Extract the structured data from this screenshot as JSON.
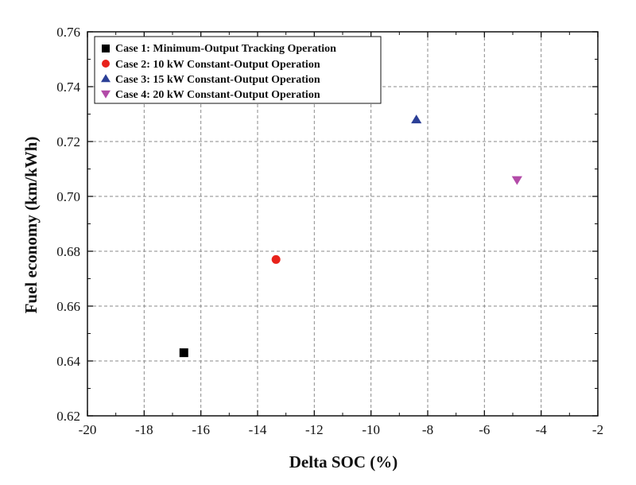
{
  "chart_data": {
    "type": "scatter",
    "title": "",
    "xlabel": "Delta SOC (%)",
    "ylabel": "Fuel economy (km/kWh)",
    "xlim": [
      -20,
      -2
    ],
    "ylim": [
      0.62,
      0.76
    ],
    "xticks": [
      -20,
      -18,
      -16,
      -14,
      -12,
      -10,
      -8,
      -6,
      -4,
      -2
    ],
    "yticks": [
      0.62,
      0.64,
      0.66,
      0.68,
      0.7,
      0.72,
      0.74,
      0.76
    ],
    "xtick_labels": [
      "-20",
      "-18",
      "-16",
      "-14",
      "-12",
      "-10",
      "-8",
      "-6",
      "-4",
      "-2"
    ],
    "ytick_labels": [
      "0.62",
      "0.64",
      "0.66",
      "0.68",
      "0.70",
      "0.72",
      "0.74",
      "0.76"
    ],
    "grid": true,
    "legend_position": "top-left",
    "series": [
      {
        "name": "Case 1: Minimum-Output Tracking Operation",
        "marker": "square",
        "color": "#000000",
        "x": [
          -16.6
        ],
        "y": [
          0.643
        ]
      },
      {
        "name": "Case 2: 10 kW Constant-Output Operation",
        "marker": "circle",
        "color": "#e8221b",
        "x": [
          -13.35
        ],
        "y": [
          0.677
        ]
      },
      {
        "name": "Case 3: 15 kW Constant-Output Operation",
        "marker": "triangle-up",
        "color": "#2b3f96",
        "x": [
          -8.4
        ],
        "y": [
          0.728
        ]
      },
      {
        "name": "Case 4: 20 kW Constant-Output Operation",
        "marker": "triangle-down",
        "color": "#b34ba8",
        "x": [
          -4.85
        ],
        "y": [
          0.706
        ]
      }
    ]
  }
}
